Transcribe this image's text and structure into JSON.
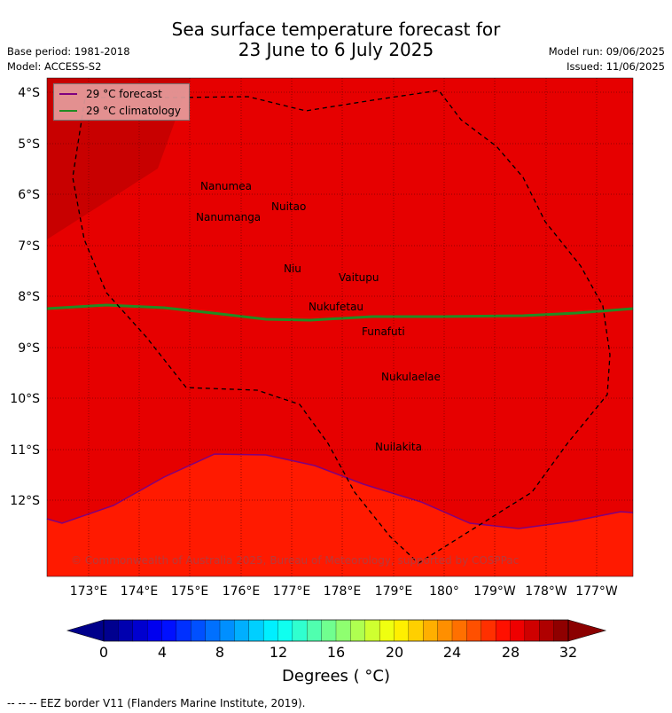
{
  "header": {
    "title_line1": "Sea surface temperature forecast for",
    "title_line2": "23 June to 6 July 2025",
    "base_period": "Base period: 1981-2018",
    "model": "Model: ACCESS-S2",
    "model_run": "Model run: 09/06/2025",
    "issued": "Issued: 11/06/2025"
  },
  "map": {
    "lat_labels": [
      "4°S",
      "5°S",
      "6°S",
      "7°S",
      "8°S",
      "9°S",
      "10°S",
      "11°S",
      "12°S"
    ],
    "lon_labels": [
      "173°E",
      "174°E",
      "175°E",
      "176°E",
      "177°E",
      "178°E",
      "179°E",
      "180°",
      "179°W",
      "178°W",
      "177°W"
    ],
    "islands": [
      "Nanumea",
      "Nuitao",
      "Nanumanga",
      "Niu",
      "Vaitupu",
      "Nukufetau",
      "Funafuti",
      "Nukulaelae",
      "Nuilakita"
    ],
    "copyright": "© Commonwealth of Australia 2025, Bureau of Meteorology, supported by COSPPac",
    "colors": {
      "warm_red": "#e60000",
      "dark_red": "#c80000",
      "orange_red": "#ff1a00",
      "forecast_line": "#7f007f",
      "climatology_line": "#228b22"
    }
  },
  "legend": {
    "forecast": "29 °C  forecast",
    "climatology": "29 °C  climatology"
  },
  "colorbar": {
    "ticks": [
      "0",
      "4",
      "8",
      "12",
      "16",
      "20",
      "24",
      "28",
      "32"
    ],
    "label": "Degrees ( °C)"
  },
  "footer": {
    "eez_note": "--  --  -- EEZ border V11 (Flanders Marine Institute, 2019)."
  }
}
